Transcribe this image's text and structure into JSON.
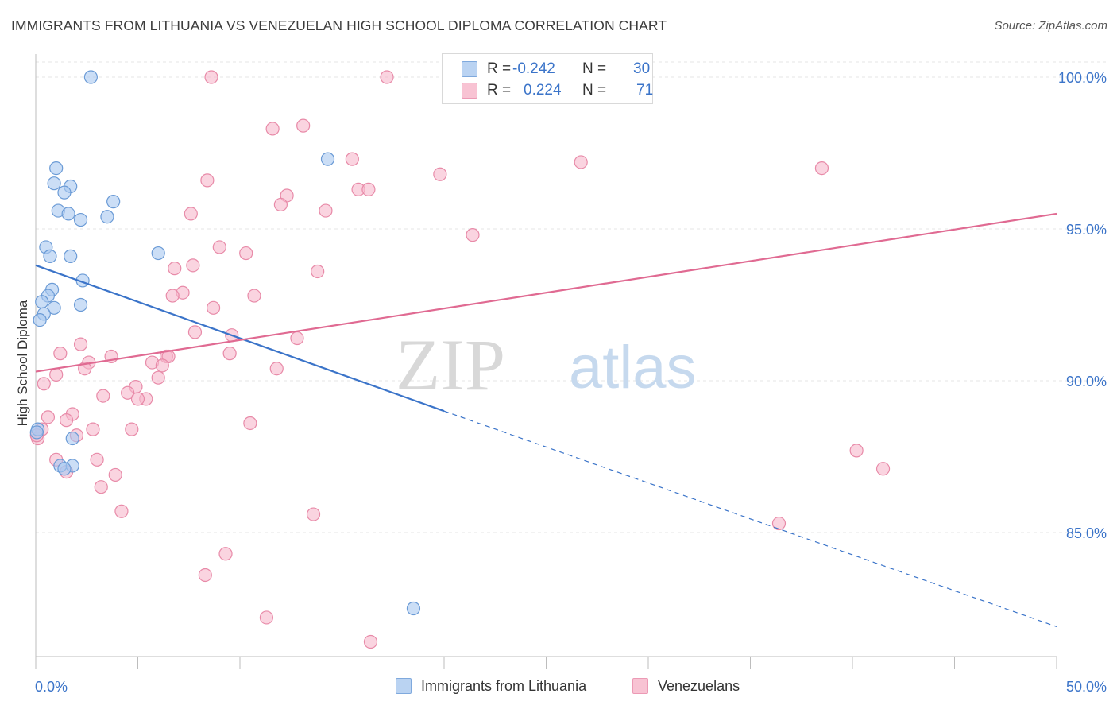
{
  "header": {
    "title": "IMMIGRANTS FROM LITHUANIA VS VENEZUELAN HIGH SCHOOL DIPLOMA CORRELATION CHART",
    "source": "Source: ZipAtlas.com"
  },
  "watermark": {
    "zip": "ZIP",
    "atlas": "atlas"
  },
  "legend_top": [
    {
      "r_label": "R =",
      "r_value": "-0.242",
      "n_label": "N =",
      "n_value": "30"
    },
    {
      "r_label": "R =",
      "r_value": "0.224",
      "n_label": "N =",
      "n_value": "71"
    }
  ],
  "legend_bottom": [
    {
      "label": "Immigrants from Lithuania"
    },
    {
      "label": "Venezuelans"
    }
  ],
  "colors": {
    "blue_fill": "#a8c8f0",
    "blue_stroke": "#6b9bd6",
    "blue_line": "#3b74c9",
    "pink_fill": "#f6b8cb",
    "pink_stroke": "#e88aa8",
    "pink_line": "#e06a92",
    "tick_label": "#3b74c9",
    "grid": "#e4e4e4"
  },
  "chart_data": {
    "type": "scatter",
    "title": "IMMIGRANTS FROM LITHUANIA VS VENEZUELAN HIGH SCHOOL DIPLOMA CORRELATION CHART",
    "xlabel": "",
    "ylabel": "High School Diploma",
    "xlim": [
      0,
      50
    ],
    "ylim": [
      80.5,
      100.5
    ],
    "x_tick_labels": [
      {
        "value": 0,
        "label": "0.0%"
      },
      {
        "value": 50,
        "label": "50.0%"
      }
    ],
    "y_tick_labels": [
      {
        "value": 100,
        "label": "100.0%"
      },
      {
        "value": 95,
        "label": "95.0%"
      },
      {
        "value": 90,
        "label": "90.0%"
      },
      {
        "value": 85,
        "label": "85.0%"
      }
    ],
    "grid": true,
    "legend_position": "top-center",
    "series": [
      {
        "name": "Immigrants from Lithuania",
        "color": "blue",
        "trend": {
          "x": [
            0,
            20
          ],
          "y": [
            93.8,
            89.0
          ],
          "dashed_to": [
            50,
            81.9
          ]
        },
        "points": [
          [
            2.7,
            100.0
          ],
          [
            1.0,
            97.0
          ],
          [
            0.9,
            96.5
          ],
          [
            1.7,
            96.4
          ],
          [
            1.4,
            96.2
          ],
          [
            3.8,
            95.9
          ],
          [
            1.1,
            95.6
          ],
          [
            1.6,
            95.5
          ],
          [
            2.2,
            95.3
          ],
          [
            3.5,
            95.4
          ],
          [
            0.5,
            94.4
          ],
          [
            0.7,
            94.1
          ],
          [
            1.7,
            94.1
          ],
          [
            6.0,
            94.2
          ],
          [
            14.3,
            97.3
          ],
          [
            2.3,
            93.3
          ],
          [
            0.8,
            93.0
          ],
          [
            0.6,
            92.8
          ],
          [
            0.3,
            92.6
          ],
          [
            0.9,
            92.4
          ],
          [
            2.2,
            92.5
          ],
          [
            0.4,
            92.2
          ],
          [
            0.2,
            92.0
          ],
          [
            0.1,
            88.4
          ],
          [
            1.8,
            88.1
          ],
          [
            1.2,
            87.2
          ],
          [
            1.8,
            87.2
          ],
          [
            1.4,
            87.1
          ],
          [
            18.5,
            82.5
          ],
          [
            0.05,
            88.3
          ]
        ]
      },
      {
        "name": "Venezuelans",
        "color": "pink",
        "trend": {
          "x": [
            0,
            50
          ],
          "y": [
            90.3,
            95.5
          ]
        },
        "points": [
          [
            8.6,
            100.0
          ],
          [
            17.2,
            100.0
          ],
          [
            11.6,
            98.3
          ],
          [
            13.1,
            98.4
          ],
          [
            15.5,
            97.3
          ],
          [
            26.7,
            97.2
          ],
          [
            38.5,
            97.0
          ],
          [
            19.8,
            96.8
          ],
          [
            8.4,
            96.6
          ],
          [
            15.8,
            96.3
          ],
          [
            16.3,
            96.3
          ],
          [
            12.3,
            96.1
          ],
          [
            12.0,
            95.8
          ],
          [
            14.2,
            95.6
          ],
          [
            7.6,
            95.5
          ],
          [
            21.4,
            94.8
          ],
          [
            9.0,
            94.4
          ],
          [
            10.3,
            94.2
          ],
          [
            7.7,
            93.8
          ],
          [
            6.8,
            93.7
          ],
          [
            13.8,
            93.6
          ],
          [
            7.2,
            92.9
          ],
          [
            6.7,
            92.8
          ],
          [
            10.7,
            92.8
          ],
          [
            8.7,
            92.4
          ],
          [
            7.8,
            91.6
          ],
          [
            9.6,
            91.5
          ],
          [
            12.8,
            91.4
          ],
          [
            2.2,
            91.2
          ],
          [
            1.2,
            90.9
          ],
          [
            3.7,
            90.8
          ],
          [
            6.4,
            90.8
          ],
          [
            6.5,
            90.8
          ],
          [
            5.7,
            90.6
          ],
          [
            2.6,
            90.6
          ],
          [
            6.2,
            90.5
          ],
          [
            2.4,
            90.4
          ],
          [
            11.8,
            90.4
          ],
          [
            1.0,
            90.2
          ],
          [
            6.0,
            90.1
          ],
          [
            0.4,
            89.9
          ],
          [
            4.9,
            89.8
          ],
          [
            4.5,
            89.6
          ],
          [
            3.3,
            89.5
          ],
          [
            5.4,
            89.4
          ],
          [
            5.0,
            89.4
          ],
          [
            1.8,
            88.9
          ],
          [
            0.6,
            88.8
          ],
          [
            1.5,
            88.7
          ],
          [
            10.5,
            88.6
          ],
          [
            0.3,
            88.4
          ],
          [
            2.8,
            88.4
          ],
          [
            4.7,
            88.4
          ],
          [
            2.0,
            88.2
          ],
          [
            0.1,
            88.1
          ],
          [
            1.0,
            87.4
          ],
          [
            3.0,
            87.4
          ],
          [
            40.2,
            87.7
          ],
          [
            41.5,
            87.1
          ],
          [
            1.5,
            87.0
          ],
          [
            3.9,
            86.9
          ],
          [
            3.2,
            86.5
          ],
          [
            4.2,
            85.7
          ],
          [
            13.6,
            85.6
          ],
          [
            36.4,
            85.3
          ],
          [
            9.3,
            84.3
          ],
          [
            8.3,
            83.6
          ],
          [
            11.3,
            82.2
          ],
          [
            16.4,
            81.4
          ],
          [
            0.05,
            88.2
          ],
          [
            9.5,
            90.9
          ]
        ]
      }
    ]
  }
}
